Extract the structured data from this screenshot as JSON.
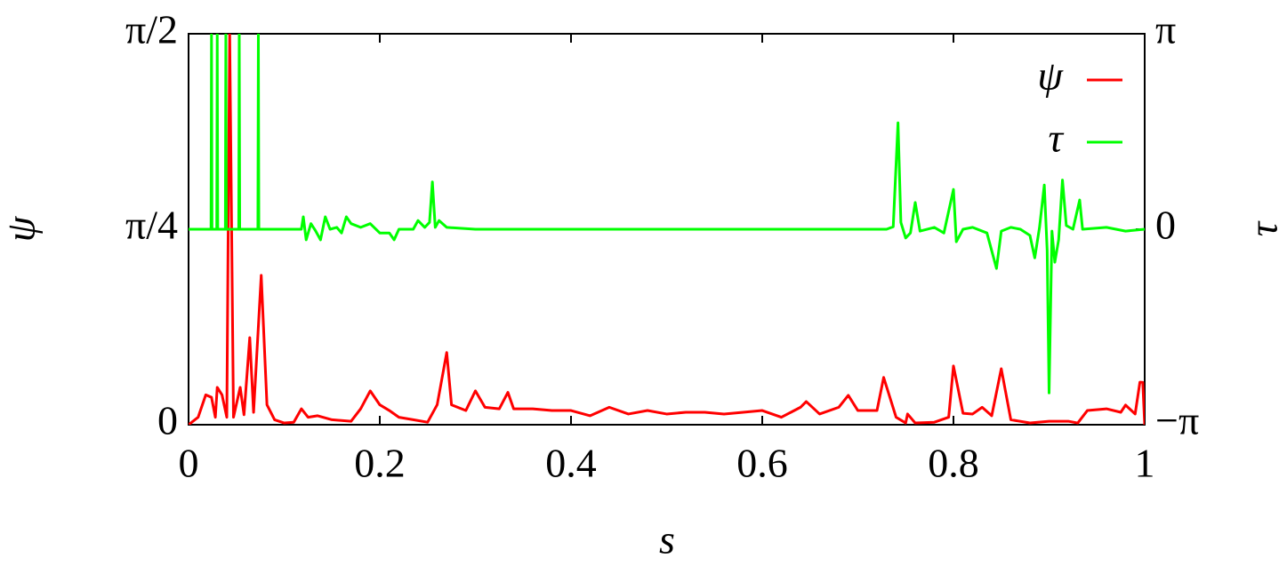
{
  "chart_data": {
    "type": "line",
    "xlabel": "s",
    "ylabel": "ψ",
    "y2label": "τ",
    "xlim": [
      0,
      1
    ],
    "xticks": [
      0,
      0.2,
      0.4,
      0.6,
      0.8,
      1
    ],
    "ylim": [
      0,
      1.5708
    ],
    "yticks": [
      0,
      {
        "value": 0.7854,
        "label": "π/4"
      },
      {
        "value": 1.5708,
        "label": "π/2"
      }
    ],
    "y2lim": [
      -3.1416,
      3.1416
    ],
    "y2ticks": [
      {
        "value": -3.1416,
        "label": "−π"
      },
      0,
      {
        "value": 3.1416,
        "label": "π"
      }
    ],
    "legend": "upper right",
    "series": [
      {
        "name": "ψ",
        "color": "#ff0000",
        "x": [
          0,
          0.01,
          0.018,
          0.024,
          0.028,
          0.03,
          0.035,
          0.04,
          0.043,
          0.047,
          0.054,
          0.058,
          0.064,
          0.068,
          0.076,
          0.082,
          0.09,
          0.1,
          0.11,
          0.118,
          0.125,
          0.135,
          0.15,
          0.17,
          0.18,
          0.19,
          0.2,
          0.21,
          0.22,
          0.235,
          0.25,
          0.26,
          0.27,
          0.275,
          0.29,
          0.3,
          0.31,
          0.325,
          0.334,
          0.34,
          0.36,
          0.38,
          0.4,
          0.42,
          0.44,
          0.46,
          0.48,
          0.5,
          0.52,
          0.54,
          0.56,
          0.58,
          0.6,
          0.62,
          0.64,
          0.646,
          0.66,
          0.68,
          0.69,
          0.7,
          0.72,
          0.727,
          0.74,
          0.75,
          0.752,
          0.76,
          0.78,
          0.795,
          0.8,
          0.81,
          0.82,
          0.83,
          0.84,
          0.85,
          0.86,
          0.88,
          0.9,
          0.92,
          0.93,
          0.94,
          0.96,
          0.975,
          0.98,
          0.99,
          0.995,
          0.998,
          1
        ],
        "values": [
          0,
          0.03,
          0.12,
          0.11,
          0.03,
          0.15,
          0.12,
          0.03,
          1.571,
          0.03,
          0.15,
          0.04,
          0.35,
          0.05,
          0.6,
          0.08,
          0.02,
          0.007,
          0.01,
          0.064,
          0.03,
          0.036,
          0.02,
          0.014,
          0.064,
          0.136,
          0.08,
          0.057,
          0.03,
          0.02,
          0.01,
          0.08,
          0.29,
          0.08,
          0.057,
          0.136,
          0.07,
          0.064,
          0.13,
          0.064,
          0.064,
          0.057,
          0.057,
          0.036,
          0.07,
          0.043,
          0.057,
          0.043,
          0.05,
          0.05,
          0.043,
          0.05,
          0.057,
          0.03,
          0.07,
          0.093,
          0.043,
          0.07,
          0.118,
          0.057,
          0.057,
          0.19,
          0.03,
          0.007,
          0.043,
          0.007,
          0.01,
          0.03,
          0.236,
          0.046,
          0.043,
          0.07,
          0.036,
          0.225,
          0.02,
          0.007,
          0.014,
          0.014,
          0.007,
          0.057,
          0.064,
          0.05,
          0.079,
          0.043,
          0.171,
          0.17,
          0
        ]
      },
      {
        "name": "τ",
        "color": "#00ff00",
        "axis": "y2",
        "x": [
          0,
          0.0235,
          0.024,
          0.0245,
          0.0295,
          0.03,
          0.0305,
          0.0385,
          0.039,
          0.0395,
          0.0525,
          0.053,
          0.0535,
          0.0725,
          0.073,
          0.0735,
          0.118,
          0.12,
          0.123,
          0.128,
          0.133,
          0.138,
          0.143,
          0.148,
          0.155,
          0.16,
          0.165,
          0.17,
          0.18,
          0.19,
          0.2,
          0.21,
          0.215,
          0.22,
          0.235,
          0.24,
          0.247,
          0.252,
          0.255,
          0.258,
          0.262,
          0.27,
          0.3,
          0.73,
          0.737,
          0.742,
          0.745,
          0.75,
          0.755,
          0.76,
          0.765,
          0.78,
          0.79,
          0.8,
          0.803,
          0.81,
          0.82,
          0.835,
          0.845,
          0.85,
          0.86,
          0.87,
          0.88,
          0.885,
          0.89,
          0.895,
          0.898,
          0.9,
          0.903,
          0.906,
          0.91,
          0.914,
          0.918,
          0.925,
          0.932,
          0.935,
          0.96,
          0.98,
          1
        ],
        "values": [
          0,
          0,
          3.1416,
          0,
          0,
          3.1416,
          0,
          0,
          3.1416,
          0,
          0,
          3.1416,
          0,
          0,
          3.1416,
          0,
          0,
          0.2,
          -0.17,
          0.09,
          -0.03,
          -0.17,
          0.2,
          0,
          0.03,
          -0.06,
          0.2,
          0.09,
          0.03,
          0.09,
          -0.06,
          -0.06,
          -0.17,
          0,
          0,
          0.14,
          0.03,
          0.11,
          0.76,
          0.03,
          0.14,
          0.03,
          0,
          0,
          0.04,
          1.71,
          0.11,
          -0.14,
          -0.06,
          0.43,
          -0.03,
          0.03,
          -0.06,
          0.64,
          -0.2,
          0,
          0.03,
          -0.06,
          -0.63,
          -0.03,
          0.03,
          0,
          -0.1,
          -0.46,
          0.03,
          0.71,
          -0.34,
          -2.63,
          -0.03,
          -0.53,
          -0.17,
          0.79,
          0.06,
          0,
          0.47,
          0,
          0.03,
          -0.03,
          0
        ]
      }
    ]
  }
}
